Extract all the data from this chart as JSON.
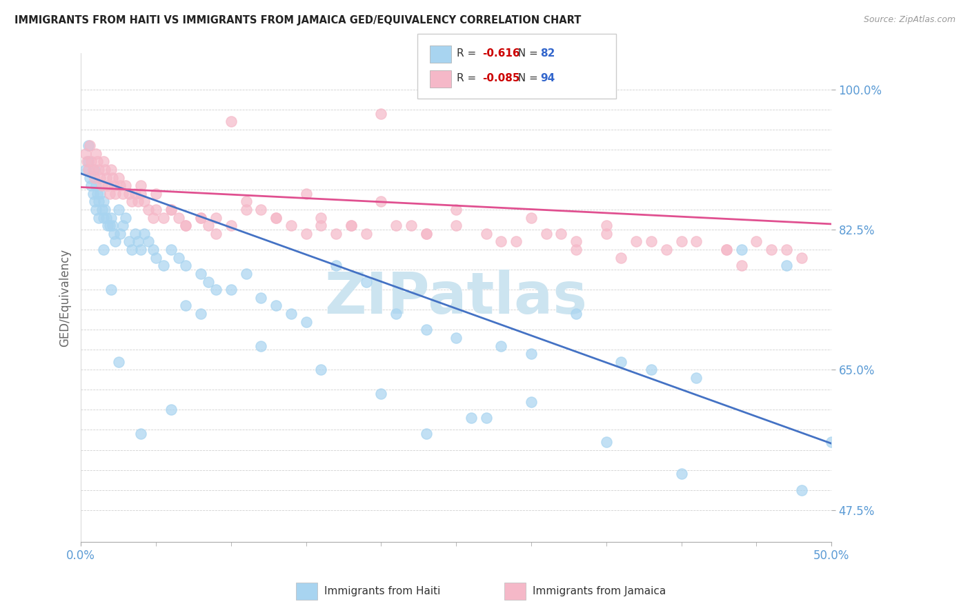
{
  "title": "IMMIGRANTS FROM HAITI VS IMMIGRANTS FROM JAMAICA GED/EQUIVALENCY CORRELATION CHART",
  "source": "Source: ZipAtlas.com",
  "ylabel": "GED/Equivalency",
  "xlim": [
    0.0,
    0.5
  ],
  "ylim": [
    0.435,
    1.045
  ],
  "ytick_labels": [
    0.475,
    0.65,
    0.825,
    1.0
  ],
  "xtick_labels": [
    0.0,
    0.5
  ],
  "haiti_R": -0.616,
  "haiti_N": 82,
  "jamaica_R": -0.085,
  "jamaica_N": 94,
  "haiti_color": "#a8d4f0",
  "jamaica_color": "#f5b8c8",
  "haiti_line_color": "#4472C4",
  "jamaica_line_color": "#e05090",
  "background_color": "#ffffff",
  "grid_color": "#d0d0d0",
  "title_color": "#222222",
  "axis_label_color": "#5b9bd5",
  "watermark_color": "#cce4f0",
  "haiti_line_y0": 0.895,
  "haiti_line_y1": 0.558,
  "jamaica_line_y0": 0.878,
  "jamaica_line_y1": 0.832,
  "haiti_scatter_x": [
    0.003,
    0.005,
    0.005,
    0.006,
    0.007,
    0.008,
    0.009,
    0.009,
    0.01,
    0.01,
    0.011,
    0.012,
    0.012,
    0.013,
    0.014,
    0.015,
    0.015,
    0.016,
    0.017,
    0.018,
    0.019,
    0.02,
    0.021,
    0.022,
    0.023,
    0.025,
    0.026,
    0.028,
    0.03,
    0.032,
    0.034,
    0.036,
    0.038,
    0.04,
    0.042,
    0.045,
    0.048,
    0.05,
    0.055,
    0.06,
    0.065,
    0.07,
    0.08,
    0.085,
    0.09,
    0.1,
    0.11,
    0.12,
    0.13,
    0.14,
    0.15,
    0.17,
    0.19,
    0.21,
    0.23,
    0.25,
    0.28,
    0.3,
    0.33,
    0.36,
    0.38,
    0.41,
    0.44,
    0.47,
    0.23,
    0.26,
    0.3,
    0.08,
    0.06,
    0.04,
    0.02,
    0.015,
    0.025,
    0.07,
    0.12,
    0.16,
    0.2,
    0.27,
    0.35,
    0.4,
    0.48,
    0.5
  ],
  "haiti_scatter_y": [
    0.9,
    0.93,
    0.91,
    0.89,
    0.88,
    0.87,
    0.9,
    0.86,
    0.88,
    0.85,
    0.87,
    0.86,
    0.84,
    0.87,
    0.85,
    0.86,
    0.84,
    0.85,
    0.84,
    0.83,
    0.83,
    0.84,
    0.83,
    0.82,
    0.81,
    0.85,
    0.82,
    0.83,
    0.84,
    0.81,
    0.8,
    0.82,
    0.81,
    0.8,
    0.82,
    0.81,
    0.8,
    0.79,
    0.78,
    0.8,
    0.79,
    0.78,
    0.77,
    0.76,
    0.75,
    0.75,
    0.77,
    0.74,
    0.73,
    0.72,
    0.71,
    0.78,
    0.76,
    0.72,
    0.7,
    0.69,
    0.68,
    0.67,
    0.72,
    0.66,
    0.65,
    0.64,
    0.8,
    0.78,
    0.57,
    0.59,
    0.61,
    0.72,
    0.6,
    0.57,
    0.75,
    0.8,
    0.66,
    0.73,
    0.68,
    0.65,
    0.62,
    0.59,
    0.56,
    0.52,
    0.5,
    0.56
  ],
  "jamaica_scatter_x": [
    0.003,
    0.004,
    0.005,
    0.006,
    0.007,
    0.008,
    0.009,
    0.01,
    0.011,
    0.012,
    0.013,
    0.014,
    0.015,
    0.016,
    0.017,
    0.018,
    0.019,
    0.02,
    0.021,
    0.022,
    0.023,
    0.025,
    0.026,
    0.028,
    0.03,
    0.032,
    0.034,
    0.036,
    0.038,
    0.04,
    0.042,
    0.045,
    0.048,
    0.05,
    0.055,
    0.06,
    0.065,
    0.07,
    0.08,
    0.085,
    0.09,
    0.1,
    0.11,
    0.12,
    0.13,
    0.14,
    0.15,
    0.16,
    0.17,
    0.18,
    0.19,
    0.21,
    0.23,
    0.25,
    0.27,
    0.29,
    0.31,
    0.33,
    0.35,
    0.37,
    0.39,
    0.41,
    0.43,
    0.45,
    0.47,
    0.1,
    0.15,
    0.2,
    0.25,
    0.3,
    0.35,
    0.2,
    0.09,
    0.07,
    0.13,
    0.18,
    0.23,
    0.28,
    0.33,
    0.38,
    0.43,
    0.48,
    0.05,
    0.04,
    0.06,
    0.08,
    0.11,
    0.16,
    0.22,
    0.32,
    0.4,
    0.46,
    0.36,
    0.44
  ],
  "jamaica_scatter_y": [
    0.92,
    0.91,
    0.9,
    0.93,
    0.91,
    0.9,
    0.89,
    0.92,
    0.91,
    0.9,
    0.89,
    0.88,
    0.91,
    0.9,
    0.89,
    0.88,
    0.87,
    0.9,
    0.89,
    0.88,
    0.87,
    0.89,
    0.88,
    0.87,
    0.88,
    0.87,
    0.86,
    0.87,
    0.86,
    0.87,
    0.86,
    0.85,
    0.84,
    0.85,
    0.84,
    0.85,
    0.84,
    0.83,
    0.84,
    0.83,
    0.82,
    0.83,
    0.86,
    0.85,
    0.84,
    0.83,
    0.82,
    0.83,
    0.82,
    0.83,
    0.82,
    0.83,
    0.82,
    0.83,
    0.82,
    0.81,
    0.82,
    0.81,
    0.82,
    0.81,
    0.8,
    0.81,
    0.8,
    0.81,
    0.8,
    0.96,
    0.87,
    0.86,
    0.85,
    0.84,
    0.83,
    0.97,
    0.84,
    0.83,
    0.84,
    0.83,
    0.82,
    0.81,
    0.8,
    0.81,
    0.8,
    0.79,
    0.87,
    0.88,
    0.85,
    0.84,
    0.85,
    0.84,
    0.83,
    0.82,
    0.81,
    0.8,
    0.79,
    0.78
  ]
}
